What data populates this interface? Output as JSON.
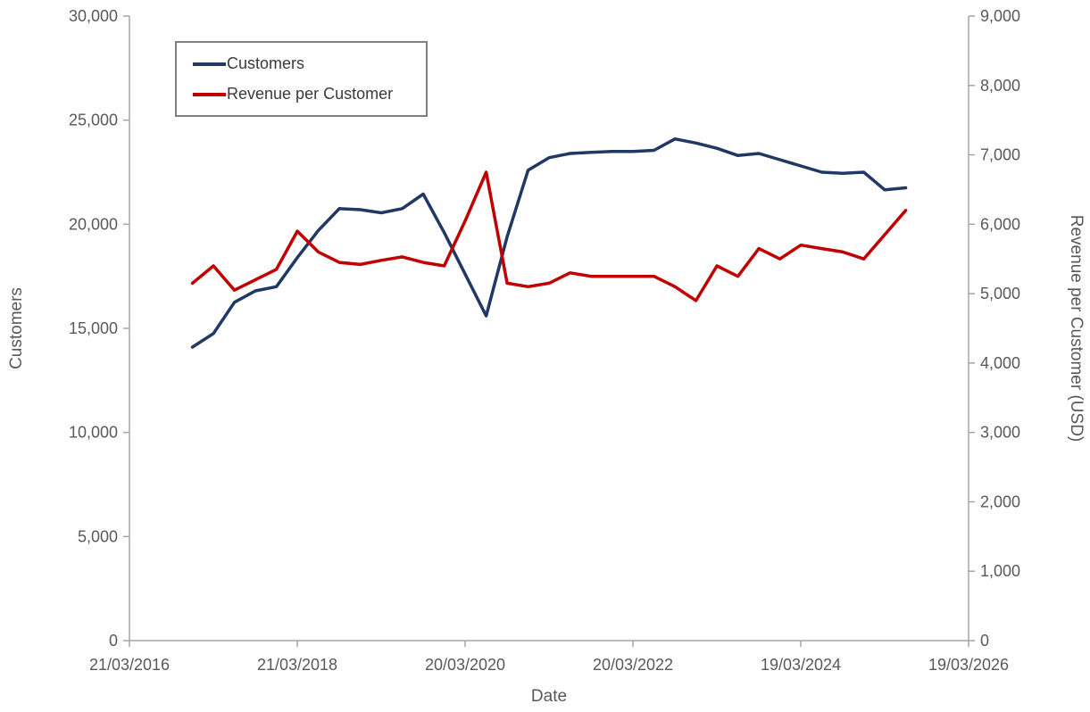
{
  "chart_data": {
    "type": "line",
    "title": "",
    "background": "#ffffff",
    "style": {
      "axis_color": "#a6a6a6",
      "text_color": "#595959",
      "legend_border_color": "#808080",
      "grid": "off",
      "legend_position": "top-left-inside"
    },
    "x_axis": {
      "title": "Date",
      "range": [
        2016.219,
        2026.219
      ],
      "ticks": [
        {
          "label": "21/03/2016",
          "x": 2016.219
        },
        {
          "label": "21/03/2018",
          "x": 2018.219
        },
        {
          "label": "20/03/2020",
          "x": 2020.219
        },
        {
          "label": "20/03/2022",
          "x": 2022.219
        },
        {
          "label": "19/03/2024",
          "x": 2024.219
        },
        {
          "label": "19/03/2026",
          "x": 2026.219
        }
      ]
    },
    "left_axis": {
      "title": "Customers",
      "min": 0,
      "max": 30000,
      "tick_step": 5000
    },
    "right_axis": {
      "title": "Revenue per Customer (USD)",
      "min": 0,
      "max": 9000,
      "tick_step": 1000
    },
    "x_start": 2016.97,
    "x_step": 0.25,
    "series": [
      {
        "name": "Customers",
        "axis": "left",
        "color": "#1f3864",
        "values": [
          14100,
          14750,
          16250,
          16800,
          17000,
          18400,
          19700,
          20750,
          20700,
          20550,
          20750,
          21450,
          19600,
          17600,
          15600,
          19400,
          22600,
          23200,
          23400,
          23450,
          23500,
          23500,
          23550,
          24100,
          23900,
          23650,
          23300,
          23400,
          23100,
          22800,
          22500,
          22450,
          22500,
          21650,
          21750
        ]
      },
      {
        "name": "Revenue per Customer",
        "axis": "right",
        "color": "#c00000",
        "values": [
          5150,
          5400,
          5050,
          5200,
          5350,
          5900,
          5600,
          5450,
          5420,
          5480,
          5530,
          5450,
          5400,
          6050,
          6750,
          5150,
          5100,
          5150,
          5300,
          5250,
          5250,
          5250,
          5250,
          5100,
          4900,
          5400,
          5250,
          5650,
          5500,
          5700,
          5650,
          5600,
          5500,
          5850,
          6200
        ]
      }
    ],
    "legend": {
      "entries": [
        "Customers",
        "Revenue per Customer"
      ]
    }
  }
}
